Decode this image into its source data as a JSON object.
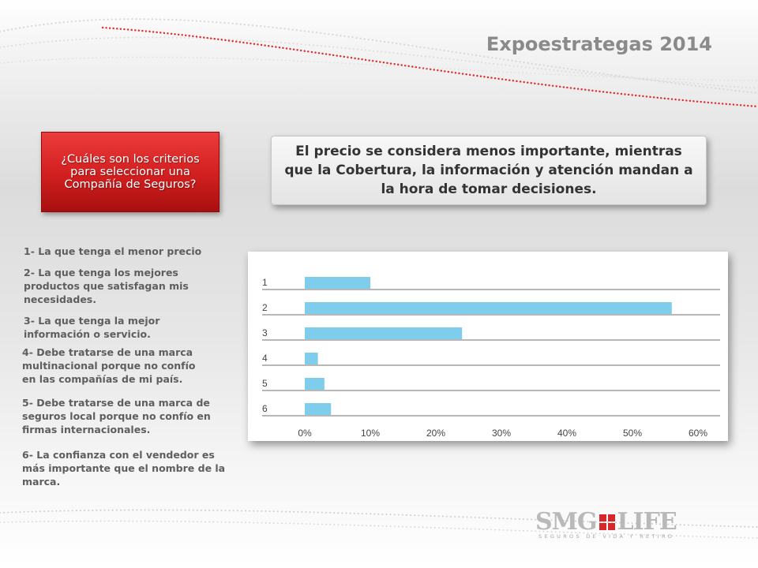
{
  "header": {
    "title": "Expoestrategas 2014"
  },
  "question": {
    "text": "¿Cuáles son los criterios para seleccionar una Compañía de Seguros?"
  },
  "statement": {
    "text": "El precio se considera menos importante, mientras que la Cobertura, la información y atención mandan a la hora de tomar decisiones."
  },
  "options": [
    {
      "text": "1- La que tenga el menor precio"
    },
    {
      "text": "2- La que tenga los mejores productos que satisfagan mis necesidades."
    },
    {
      "text": "3- La que tenga la mejor información o servicio."
    },
    {
      "text": "4- Debe tratarse de una marca multinacional porque no confío en las compañías de mi país."
    },
    {
      "text": "5- Debe tratarse de una marca de seguros local porque no confío en firmas internacionales."
    },
    {
      "text": "6- La confianza con el vendedor es más importante que el nombre de la marca."
    }
  ],
  "chart_data": {
    "type": "bar",
    "orientation": "horizontal",
    "categories": [
      "1",
      "2",
      "3",
      "4",
      "5",
      "6"
    ],
    "values": [
      10,
      56,
      24,
      2,
      3,
      4
    ],
    "xlim": [
      0,
      60
    ],
    "xticks": [
      "0%",
      "10%",
      "20%",
      "30%",
      "40%",
      "50%",
      "60%"
    ],
    "bar_color": "#7fcdec",
    "grid": "horizontal separators"
  },
  "logo": {
    "text_left": "SMG",
    "text_right": "LIFE",
    "tagline": "SEGUROS DE VIDA Y RETIRO"
  },
  "colors": {
    "accent_red": "#d11f1f",
    "title_gray": "#8a8a8a",
    "bar": "#7fcdec"
  }
}
